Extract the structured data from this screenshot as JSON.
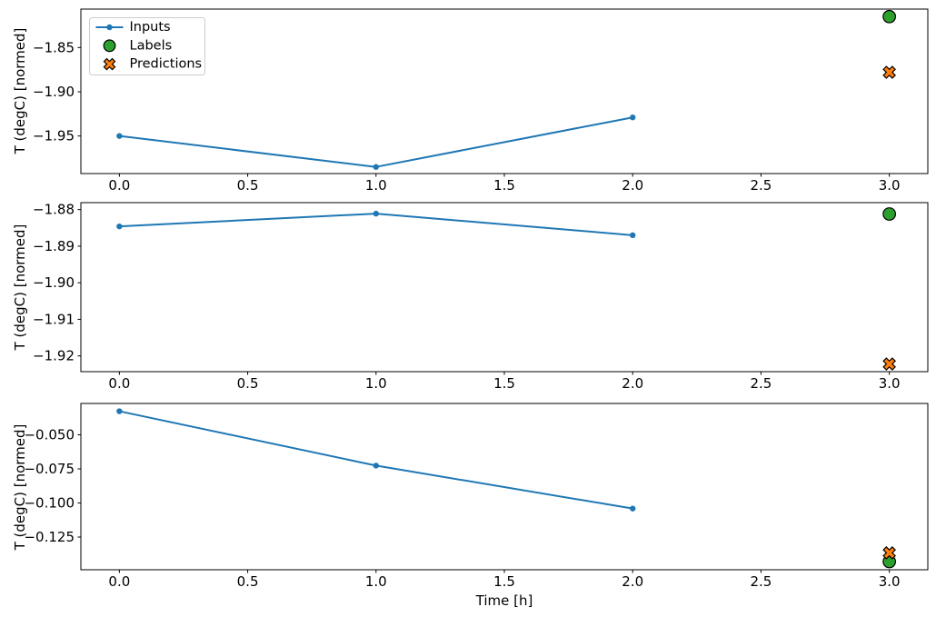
{
  "figure": {
    "background": "#ffffff",
    "xlabel": "Time [h]",
    "ylabel": "T (degC) [normed]"
  },
  "legend": {
    "position": "upper left",
    "items": [
      "Inputs",
      "Labels",
      "Predictions"
    ]
  },
  "chart_data": [
    {
      "type": "line",
      "subplot": 1,
      "xlabel": "",
      "ylabel": "T (degC) [normed]",
      "xlim": [
        -0.15,
        3.15
      ],
      "ylim": [
        -1.9925,
        -1.8065
      ],
      "xtick_values": [
        0.0,
        0.5,
        1.0,
        1.5,
        2.0,
        2.5,
        3.0
      ],
      "xtick_labels": [
        "0.0",
        "0.5",
        "1.0",
        "1.5",
        "2.0",
        "2.5",
        "3.0"
      ],
      "ytick_values": [
        -1.85,
        -1.9,
        -1.95
      ],
      "ytick_labels": [
        "−1.85",
        "−1.90",
        "−1.95"
      ],
      "grid": false,
      "legend": {
        "visible": true,
        "position": "upper left"
      },
      "series": [
        {
          "name": "Inputs",
          "plot": "line",
          "marker": "dot",
          "color": "#1f77b4",
          "x": [
            0,
            1,
            2
          ],
          "y": [
            -1.95,
            -1.985,
            -1.929
          ]
        },
        {
          "name": "Labels",
          "plot": "scatter",
          "marker": "circle",
          "color": "#2ca02c",
          "edge": "#000000",
          "x": [
            3
          ],
          "y": [
            -1.815
          ]
        },
        {
          "name": "Predictions",
          "plot": "scatter",
          "marker": "X",
          "color": "#ff7f0e",
          "edge": "#000000",
          "x": [
            3
          ],
          "y": [
            -1.878
          ]
        }
      ]
    },
    {
      "type": "line",
      "subplot": 2,
      "xlabel": "",
      "ylabel": "T (degC) [normed]",
      "xlim": [
        -0.15,
        3.15
      ],
      "ylim": [
        -1.9243,
        -1.8781
      ],
      "xtick_values": [
        0.0,
        0.5,
        1.0,
        1.5,
        2.0,
        2.5,
        3.0
      ],
      "xtick_labels": [
        "0.0",
        "0.5",
        "1.0",
        "1.5",
        "2.0",
        "2.5",
        "3.0"
      ],
      "ytick_values": [
        -1.88,
        -1.89,
        -1.9,
        -1.91,
        -1.92
      ],
      "ytick_labels": [
        "−1.88",
        "−1.89",
        "−1.90",
        "−1.91",
        "−1.92"
      ],
      "grid": false,
      "legend": {
        "visible": false
      },
      "series": [
        {
          "name": "Inputs",
          "plot": "line",
          "marker": "dot",
          "color": "#1f77b4",
          "x": [
            0,
            1,
            2
          ],
          "y": [
            -1.8846,
            -1.8811,
            -1.887
          ]
        },
        {
          "name": "Labels",
          "plot": "scatter",
          "marker": "circle",
          "color": "#2ca02c",
          "edge": "#000000",
          "x": [
            3
          ],
          "y": [
            -1.8812
          ]
        },
        {
          "name": "Predictions",
          "plot": "scatter",
          "marker": "X",
          "color": "#ff7f0e",
          "edge": "#000000",
          "x": [
            3
          ],
          "y": [
            -1.9222
          ]
        }
      ]
    },
    {
      "type": "line",
      "subplot": 3,
      "xlabel": "Time [h]",
      "ylabel": "T (degC) [normed]",
      "xlim": [
        -0.15,
        3.15
      ],
      "ylim": [
        -0.149,
        -0.027
      ],
      "xtick_values": [
        0.0,
        0.5,
        1.0,
        1.5,
        2.0,
        2.5,
        3.0
      ],
      "xtick_labels": [
        "0.0",
        "0.5",
        "1.0",
        "1.5",
        "2.0",
        "2.5",
        "3.0"
      ],
      "ytick_values": [
        -0.05,
        -0.075,
        -0.1,
        -0.125
      ],
      "ytick_labels": [
        "−0.050",
        "−0.075",
        "−0.100",
        "−0.125"
      ],
      "grid": false,
      "legend": {
        "visible": false
      },
      "series": [
        {
          "name": "Inputs",
          "plot": "line",
          "marker": "dot",
          "color": "#1f77b4",
          "x": [
            0,
            1,
            2
          ],
          "y": [
            -0.0327,
            -0.0726,
            -0.1041
          ]
        },
        {
          "name": "Labels",
          "plot": "scatter",
          "marker": "circle",
          "color": "#2ca02c",
          "edge": "#000000",
          "x": [
            3
          ],
          "y": [
            -0.143
          ]
        },
        {
          "name": "Predictions",
          "plot": "scatter",
          "marker": "X",
          "color": "#ff7f0e",
          "edge": "#000000",
          "x": [
            3
          ],
          "y": [
            -0.1366
          ]
        }
      ]
    }
  ]
}
